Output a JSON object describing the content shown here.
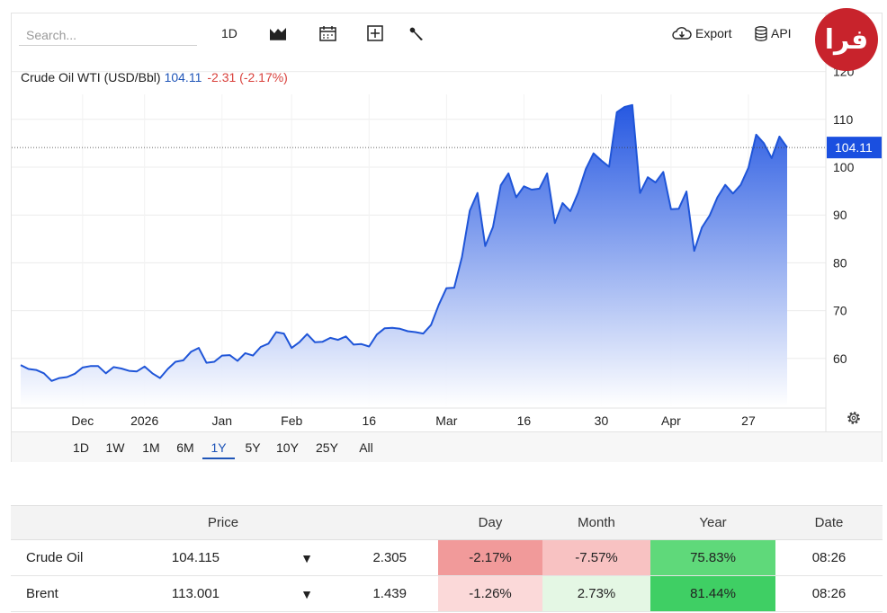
{
  "toolbar": {
    "search_placeholder": "Search...",
    "interval_label": "1D",
    "export_label": "Export",
    "api_label": "API"
  },
  "logo_text": "فرا",
  "chart_header": {
    "title": "Crude Oil WTI (USD/Bbl)",
    "price": "104.11",
    "change": "-2.31 (-2.17%)"
  },
  "chart_data": {
    "type": "area",
    "title": "Crude Oil WTI (USD/Bbl)",
    "ylim": [
      50,
      125
    ],
    "yticks": [
      60,
      70,
      80,
      90,
      100,
      110,
      120
    ],
    "last_price_label": "104.11",
    "last_price": 104.11,
    "x_ticks": [
      {
        "label": "Dec",
        "i": 8
      },
      {
        "label": "2026",
        "i": 16
      },
      {
        "label": "Jan",
        "i": 26
      },
      {
        "label": "Feb",
        "i": 35
      },
      {
        "label": "16",
        "i": 45
      },
      {
        "label": "Mar",
        "i": 55
      },
      {
        "label": "16",
        "i": 65
      },
      {
        "label": "30",
        "i": 75
      },
      {
        "label": "Apr",
        "i": 84
      },
      {
        "label": "27",
        "i": 94
      }
    ],
    "values": [
      58.6,
      57.8,
      57.6,
      56.9,
      55.3,
      55.9,
      56.1,
      56.8,
      58.1,
      58.4,
      58.4,
      56.9,
      58.2,
      57.9,
      57.4,
      57.3,
      58.3,
      56.9,
      55.9,
      57.8,
      59.3,
      59.6,
      61.4,
      62.2,
      59.1,
      59.3,
      60.6,
      60.7,
      59.5,
      61.1,
      60.6,
      62.4,
      63.1,
      65.5,
      65.2,
      62.2,
      63.4,
      65.1,
      63.4,
      63.5,
      64.3,
      63.9,
      64.6,
      62.9,
      63.0,
      62.5,
      65.0,
      66.3,
      66.4,
      66.2,
      65.7,
      65.5,
      65.2,
      67.0,
      71.2,
      74.7,
      74.8,
      81.2,
      90.9,
      94.6,
      83.5,
      87.5,
      96.2,
      98.7,
      93.7,
      96.0,
      95.3,
      95.5,
      98.7,
      88.3,
      92.5,
      90.8,
      94.6,
      99.6,
      102.9,
      101.4,
      100.1,
      111.5,
      112.6,
      113.0,
      94.6,
      97.9,
      96.8,
      99.0,
      91.2,
      91.3,
      94.9,
      82.5,
      87.4,
      89.9,
      93.7,
      96.3,
      94.5,
      96.3,
      99.9,
      106.8,
      105.0,
      101.9,
      106.4,
      104.11
    ]
  },
  "range_buttons": [
    "1D",
    "1W",
    "1M",
    "6M",
    "1Y",
    "5Y",
    "10Y",
    "25Y",
    "All"
  ],
  "range_active": "1Y",
  "table": {
    "headers": [
      "",
      "Price",
      "",
      "",
      "Day",
      "Month",
      "Year",
      "Date"
    ],
    "rows": [
      {
        "name": "Crude Oil",
        "price": "104.115",
        "arrow": "▼",
        "change": "2.305",
        "day": "-2.17%",
        "month": "-7.57%",
        "year": "75.83%",
        "date": "08:26"
      },
      {
        "name": "Brent",
        "price": "113.001",
        "arrow": "▼",
        "change": "1.439",
        "day": "-1.26%",
        "month": "2.73%",
        "year": "81.44%",
        "date": "08:26"
      }
    ]
  },
  "colors": {
    "line": "#1f55d8",
    "fill_top": "#1a4fe0",
    "fill_bottom": "#ffffff",
    "price_label_bg": "#1a4fe0"
  }
}
